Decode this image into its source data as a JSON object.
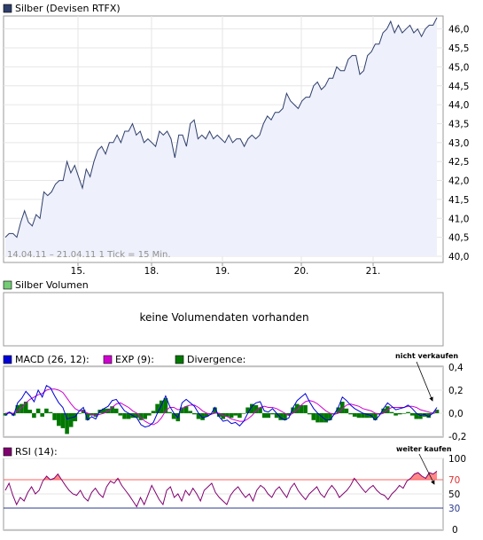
{
  "chart_data": [
    {
      "type": "line",
      "title": "Silber (Devisen RTFX)",
      "legend_color": "#2f3f6b",
      "line_color": "#2f3f6b",
      "fill_color": "#eef0fb",
      "footer": "14.04.11 – 21.04.11   1 Tick = 15 Min.",
      "y_ticks": [
        "46,0",
        "45,5",
        "45,0",
        "44,5",
        "44,0",
        "43,5",
        "43,0",
        "42,5",
        "42,0",
        "41,5",
        "41,0",
        "40,5",
        "40,0"
      ],
      "ylim": [
        40.0,
        46.25
      ],
      "x_ticks": [
        "15.",
        "18.",
        "19.",
        "20.",
        "21."
      ],
      "series": [
        {
          "values": [
            40.5,
            40.6,
            40.6,
            40.5,
            40.9,
            41.2,
            40.9,
            40.8,
            41.1,
            41.0,
            41.7,
            41.6,
            41.7,
            41.9,
            42.0,
            42.0,
            42.5,
            42.2,
            42.4,
            42.1,
            41.8,
            42.3,
            42.1,
            42.5,
            42.8,
            42.9,
            42.7,
            43.0,
            43.0,
            43.2,
            43.0,
            43.3,
            43.3,
            43.5,
            43.2,
            43.3,
            43.0,
            43.1,
            43.0,
            42.9,
            43.3,
            43.2,
            43.3,
            43.1,
            42.6,
            43.2,
            43.2,
            42.9,
            43.5,
            43.6,
            43.1,
            43.2,
            43.1,
            43.3,
            43.1,
            43.2,
            43.1,
            43.0,
            43.2,
            43.0,
            43.1,
            43.1,
            42.9,
            43.1,
            43.2,
            43.1,
            43.2,
            43.5,
            43.7,
            43.6,
            43.8,
            43.8,
            43.9,
            44.3,
            44.1,
            44.0,
            43.9,
            44.1,
            44.2,
            44.2,
            44.5,
            44.6,
            44.4,
            44.5,
            44.7,
            44.7,
            45.0,
            44.9,
            44.9,
            45.2,
            45.3,
            45.3,
            44.8,
            44.9,
            45.3,
            45.4,
            45.6,
            45.6,
            45.9,
            46.0,
            46.2,
            45.9,
            46.1,
            45.9,
            46.0,
            46.1,
            45.9,
            46.0,
            45.8,
            46.0,
            46.1,
            46.1,
            46.3
          ]
        }
      ]
    },
    {
      "type": "bar",
      "title": "Silber Volumen",
      "legend_color": "#74cc74",
      "empty_message": "keine Volumendaten vorhanden"
    },
    {
      "type": "line",
      "series": [
        {
          "name": "MACD (26, 12):",
          "color": "#0000d8",
          "values": [
            -0.02,
            0.01,
            -0.02,
            0.09,
            0.13,
            0.19,
            0.15,
            0.1,
            0.2,
            0.14,
            0.24,
            0.22,
            0.15,
            0.09,
            0.05,
            -0.05,
            -0.04,
            -0.03,
            0.02,
            0.05,
            -0.06,
            -0.03,
            -0.05,
            0.02,
            0.04,
            0.06,
            0.11,
            0.12,
            0.07,
            0.02,
            0.0,
            -0.02,
            -0.04,
            -0.1,
            -0.12,
            -0.11,
            -0.08,
            0.0,
            0.07,
            0.15,
            0.06,
            0.0,
            -0.04,
            0.09,
            0.12,
            0.09,
            0.06,
            0.0,
            -0.04,
            -0.03,
            -0.01,
            0.05,
            -0.03,
            -0.07,
            -0.06,
            -0.09,
            -0.08,
            -0.11,
            -0.07,
            0.0,
            0.06,
            0.09,
            0.1,
            0.02,
            0.01,
            0.04,
            0.0,
            -0.04,
            -0.06,
            -0.04,
            0.05,
            0.11,
            0.14,
            0.17,
            0.1,
            0.04,
            0.0,
            -0.03,
            -0.06,
            -0.06,
            -0.01,
            0.05,
            0.14,
            0.11,
            0.07,
            0.04,
            0.02,
            0.0,
            -0.01,
            -0.02,
            -0.06,
            -0.02,
            0.04,
            0.09,
            0.06,
            0.03,
            0.04,
            0.05,
            0.07,
            0.04,
            0.0,
            -0.02,
            -0.01,
            -0.03,
            0.0,
            0.05
          ]
        },
        {
          "name": "EXP (9):",
          "color": "#d000d0",
          "values": [
            0.0,
            0.0,
            0.0,
            0.02,
            0.05,
            0.09,
            0.12,
            0.14,
            0.16,
            0.17,
            0.2,
            0.21,
            0.21,
            0.2,
            0.18,
            0.13,
            0.08,
            0.04,
            0.02,
            0.02,
            0.0,
            -0.01,
            -0.02,
            -0.01,
            0.0,
            0.02,
            0.05,
            0.08,
            0.09,
            0.07,
            0.05,
            0.02,
            0.0,
            -0.04,
            -0.07,
            -0.09,
            -0.1,
            -0.08,
            -0.04,
            0.02,
            0.05,
            0.05,
            0.03,
            0.04,
            0.06,
            0.07,
            0.07,
            0.05,
            0.02,
            0.0,
            -0.01,
            0.0,
            0.0,
            -0.02,
            -0.03,
            -0.05,
            -0.06,
            -0.07,
            -0.07,
            -0.05,
            -0.02,
            0.02,
            0.05,
            0.06,
            0.05,
            0.05,
            0.04,
            0.02,
            0.0,
            -0.02,
            0.0,
            0.03,
            0.07,
            0.1,
            0.11,
            0.1,
            0.08,
            0.05,
            0.02,
            0.0,
            -0.01,
            0.0,
            0.04,
            0.07,
            0.08,
            0.07,
            0.06,
            0.04,
            0.03,
            0.02,
            0.0,
            -0.01,
            0.0,
            0.03,
            0.05,
            0.05,
            0.05,
            0.05,
            0.06,
            0.06,
            0.05,
            0.03,
            0.02,
            0.01,
            0.0,
            0.02
          ]
        }
      ],
      "divergence_label": "Divergence:",
      "divergence_color": "#007800",
      "annotation": "nicht verkaufen",
      "y_ticks": [
        "0,4",
        "0,2",
        "0,0",
        "-0,2"
      ],
      "ylim": [
        -0.2,
        0.4
      ]
    },
    {
      "type": "line",
      "series": [
        {
          "name": "RSI (14):",
          "color": "#800070",
          "values": [
            55,
            65,
            48,
            35,
            45,
            40,
            52,
            60,
            50,
            55,
            68,
            75,
            70,
            72,
            78,
            70,
            62,
            55,
            50,
            48,
            55,
            45,
            40,
            52,
            58,
            50,
            45,
            60,
            68,
            65,
            72,
            62,
            55,
            48,
            40,
            32,
            45,
            35,
            48,
            62,
            52,
            42,
            35,
            55,
            60,
            45,
            50,
            40,
            55,
            48,
            58,
            50,
            40,
            55,
            60,
            65,
            52,
            45,
            40,
            35,
            48,
            55,
            60,
            52,
            45,
            50,
            40,
            55,
            62,
            58,
            50,
            45,
            55,
            60,
            52,
            45,
            58,
            65,
            55,
            48,
            42,
            50,
            55,
            60,
            50,
            45,
            55,
            62,
            55,
            45,
            50,
            55,
            62,
            72,
            65,
            58,
            52,
            58,
            62,
            55,
            50,
            48,
            42,
            50,
            55,
            62,
            58,
            68,
            72,
            78,
            80,
            75,
            72,
            80,
            78,
            82
          ]
        }
      ],
      "upper_level": "70",
      "lower_level": "30",
      "upper_color": "#ff6060",
      "lower_color": "#2b3a8c",
      "annotation": "weiter kaufen",
      "y_ticks": [
        "100",
        "50",
        "0"
      ],
      "ylim": [
        0,
        100
      ]
    }
  ]
}
